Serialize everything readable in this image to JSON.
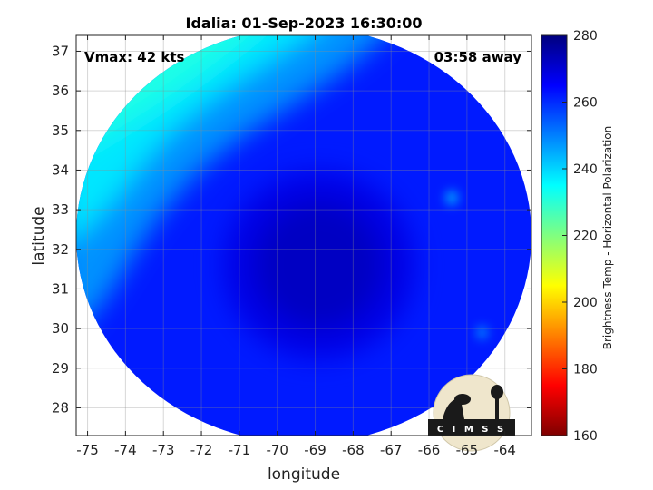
{
  "chart_data": {
    "type": "heatmap",
    "title": "Idalia: 01-Sep-2023 16:30:00",
    "xlabel": "longitude",
    "ylabel": "latitude",
    "xlim": [
      -75.3,
      -63.3
    ],
    "ylim": [
      27.3,
      37.4
    ],
    "x_ticks": [
      -75,
      -74,
      -73,
      -72,
      -71,
      -70,
      -69,
      -68,
      -67,
      -66,
      -65,
      -64
    ],
    "y_ticks": [
      28,
      29,
      30,
      31,
      32,
      33,
      34,
      35,
      36,
      37
    ],
    "grid": true,
    "annotations": {
      "vmax": "Vmax: 42 kts",
      "time_away": "03:58 away"
    },
    "colorbar": {
      "label": "Brightness Temp - Horizontal Polarization",
      "min": 160,
      "max": 280,
      "ticks": [
        160,
        180,
        200,
        220,
        240,
        260,
        280
      ],
      "colormap": "jet"
    },
    "field": {
      "swath_center": [
        -69.3,
        32.35
      ],
      "swath_radius_deg": [
        6.0,
        5.25
      ],
      "background_temp": 262,
      "cool_region": {
        "description_temp_at_nw_edge": 232
      },
      "warm_core": {
        "center": [
          -68.9,
          31.6
        ],
        "temp": 272
      }
    }
  },
  "logo": {
    "text": "C I M S S",
    "name": "cimss-logo"
  }
}
